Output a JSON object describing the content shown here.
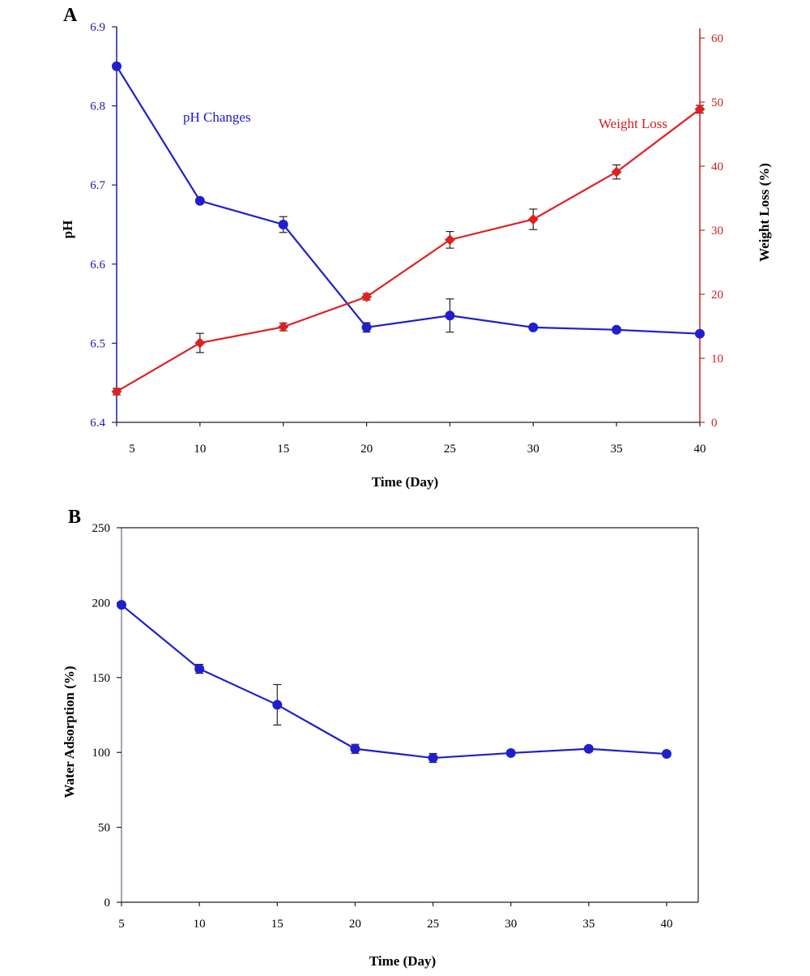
{
  "chart_data": [
    {
      "panel": "A",
      "type": "line",
      "x": [
        5,
        10,
        15,
        20,
        25,
        30,
        35,
        40
      ],
      "xlim": [
        5,
        40
      ],
      "xticks": [
        5,
        10,
        15,
        20,
        25,
        30,
        35,
        40
      ],
      "xlabel": "Time (Day)",
      "ylabel_left": "pH",
      "ylim_left": [
        6.4,
        6.9
      ],
      "yticks_left": [
        "6.4",
        "6.5",
        "6.6",
        "6.7",
        "6.8",
        "6.9"
      ],
      "ylabel_right": "Weight Loss (%)",
      "ylim_right": [
        0,
        60
      ],
      "yticks_right": [
        "0",
        "10",
        "20",
        "30",
        "40",
        "50",
        "60"
      ],
      "left_color": "#1a1aa6",
      "right_color": "#cc2020",
      "series": [
        {
          "name": "pH Changes",
          "axis": "left",
          "marker": "circle",
          "color": "#1f1fcc",
          "values": [
            6.85,
            6.68,
            6.65,
            6.52,
            6.535,
            6.52,
            6.517,
            6.512
          ],
          "errors": [
            0.002,
            0.002,
            0.01,
            0.006,
            0.021,
            0.002,
            0.003,
            0.002
          ]
        },
        {
          "name": "Weight Loss",
          "axis": "right",
          "marker": "diamond",
          "color": "#e02020",
          "values": [
            4.8,
            12.4,
            14.9,
            19.6,
            28.5,
            31.7,
            39.1,
            48.9
          ],
          "errors": [
            0.5,
            1.5,
            0.6,
            0.5,
            1.3,
            1.6,
            1.1,
            0.6
          ]
        }
      ]
    },
    {
      "panel": "B",
      "type": "line",
      "x": [
        5,
        10,
        15,
        20,
        25,
        30,
        35,
        40
      ],
      "xlim": [
        5,
        42
      ],
      "xticks": [
        5,
        10,
        15,
        20,
        25,
        30,
        35,
        40
      ],
      "xlabel": "Time (Day)",
      "ylabel": "Water Adsorption (%)",
      "ylim": [
        0,
        250
      ],
      "yticks": [
        "0",
        "50",
        "100",
        "150",
        "200",
        "250"
      ],
      "series": [
        {
          "marker": "circle",
          "color": "#1f1fcc",
          "values": [
            198.5,
            155.8,
            131.8,
            102.4,
            96.3,
            99.6,
            102.4,
            99.0
          ],
          "errors": [
            1.0,
            3.0,
            13.5,
            3.0,
            3.0,
            1.5,
            1.8,
            1.5
          ]
        }
      ]
    }
  ]
}
